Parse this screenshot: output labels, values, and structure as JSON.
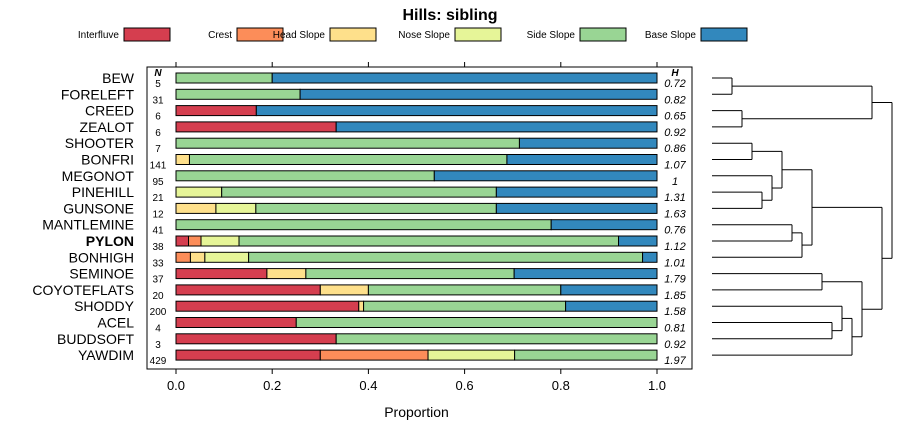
{
  "chart_data": {
    "type": "bar",
    "orientation": "horizontal-stacked",
    "title": "Hills: sibling",
    "xlabel": "Proportion",
    "ylabel": "",
    "xlim": [
      0,
      1
    ],
    "xticks": [
      0.0,
      0.2,
      0.4,
      0.6,
      0.8,
      1.0
    ],
    "xtick_labels": [
      "0.0",
      "0.2",
      "0.4",
      "0.6",
      "0.8",
      "1.0"
    ],
    "n_header": "N",
    "h_header": "H",
    "legend": [
      {
        "name": "Interfluve",
        "color": "#D53E4F"
      },
      {
        "name": "Crest",
        "color": "#FC8D59"
      },
      {
        "name": "Head Slope",
        "color": "#FEE08B"
      },
      {
        "name": "Nose Slope",
        "color": "#E6F598"
      },
      {
        "name": "Side Slope",
        "color": "#99D594"
      },
      {
        "name": "Base Slope",
        "color": "#3288BD"
      }
    ],
    "categories": [
      "BEW",
      "FORELEFT",
      "CREED",
      "ZEALOT",
      "SHOOTER",
      "BONFRI",
      "MEGONOT",
      "PINEHILL",
      "GUNSONE",
      "MANTLEMINE",
      "PYLON",
      "BONHIGH",
      "SEMINOE",
      "COYOTEFLATS",
      "SHODDY",
      "ACEL",
      "BUDDSOFT",
      "YAWDIM"
    ],
    "highlight": "PYLON",
    "n": [
      "5",
      "31",
      "6",
      "6",
      "7",
      "141",
      "95",
      "21",
      "12",
      "41",
      "38",
      "33",
      "37",
      "20",
      "200",
      "4",
      "3",
      "429"
    ],
    "h": [
      "0.72",
      "0.82",
      "0.65",
      "0.92",
      "0.86",
      "1.07",
      "1",
      "1.31",
      "1.63",
      "0.76",
      "1.12",
      "1.01",
      "1.79",
      "1.85",
      "1.58",
      "0.81",
      "0.92",
      "1.97"
    ],
    "series": [
      {
        "name": "Interfluve",
        "values": [
          0,
          0,
          0.167,
          0.333,
          0,
          0,
          0,
          0,
          0,
          0,
          0.026,
          0,
          0.189,
          0.3,
          0.38,
          0.25,
          0.333,
          0.3
        ]
      },
      {
        "name": "Crest",
        "values": [
          0,
          0,
          0,
          0,
          0,
          0,
          0,
          0,
          0,
          0,
          0.026,
          0.03,
          0,
          0,
          0,
          0,
          0,
          0.224
        ]
      },
      {
        "name": "Head Slope",
        "values": [
          0,
          0,
          0,
          0,
          0,
          0.028,
          0,
          0,
          0.083,
          0,
          0,
          0.03,
          0.081,
          0.1,
          0.01,
          0,
          0,
          0
        ]
      },
      {
        "name": "Nose Slope",
        "values": [
          0,
          0,
          0,
          0,
          0,
          0,
          0,
          0.095,
          0.083,
          0,
          0.079,
          0.091,
          0,
          0,
          0,
          0,
          0,
          0.18
        ]
      },
      {
        "name": "Side Slope",
        "values": [
          0.2,
          0.258,
          0,
          0,
          0.714,
          0.66,
          0.537,
          0.571,
          0.5,
          0.78,
          0.789,
          0.819,
          0.433,
          0.4,
          0.42,
          0.75,
          0.667,
          0.296
        ]
      },
      {
        "name": "Base Slope",
        "values": [
          0.8,
          0.742,
          0.833,
          0.667,
          0.286,
          0.312,
          0.463,
          0.334,
          0.334,
          0.22,
          0.08,
          0.03,
          0.297,
          0.2,
          0.19,
          0,
          0,
          0
        ]
      }
    ],
    "dendrogram_merges": [
      [
        -1,
        -2
      ],
      [
        -3,
        -4
      ],
      [
        -5,
        -6
      ],
      [
        -8,
        -9
      ],
      [
        -7,
        4
      ],
      [
        3,
        5
      ],
      [
        -10,
        -11
      ],
      [
        -12,
        7
      ],
      [
        6,
        8
      ],
      [
        -13,
        -14
      ],
      [
        -16,
        -17
      ],
      [
        -15,
        11
      ],
      [
        -18,
        12
      ],
      [
        10,
        13
      ],
      [
        1,
        2
      ],
      [
        14,
        9
      ],
      [
        16,
        15
      ]
    ]
  }
}
